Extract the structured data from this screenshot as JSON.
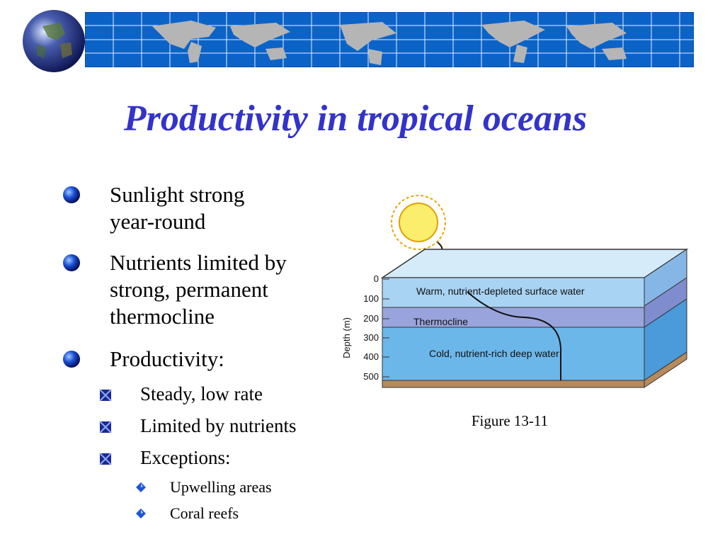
{
  "slide": {
    "title": "Productivity in tropical oceans",
    "bullets": [
      {
        "text_line1": "Sunlight strong",
        "text_line2": "year-round"
      },
      {
        "text_line1": "Nutrients limited by",
        "text_line2": "strong, permanent",
        "text_line3": "thermocline"
      },
      {
        "text_line1": "Productivity:"
      }
    ],
    "sub_bullets": [
      "Steady, low rate",
      "Limited by nutrients",
      "Exceptions:"
    ],
    "sub_sub_bullets": [
      "Upwelling areas",
      "Coral reefs"
    ]
  },
  "figure": {
    "axis_label": "Depth (m)",
    "ticks": [
      "0",
      "100",
      "200",
      "300",
      "400",
      "500"
    ],
    "layers": {
      "surface": "Warm, nutrient-depleted surface water",
      "thermocline": "Thermocline",
      "deep": "Cold, nutrient-rich deep water"
    },
    "caption": "Figure 13-11"
  },
  "colors": {
    "title": "#3333cc",
    "banner": "#0b63c8",
    "surface_water": "#a9d3f3",
    "thermocline": "#9aa4dc",
    "deep_water": "#6cb7ea",
    "sediment": "#b78a5c"
  }
}
